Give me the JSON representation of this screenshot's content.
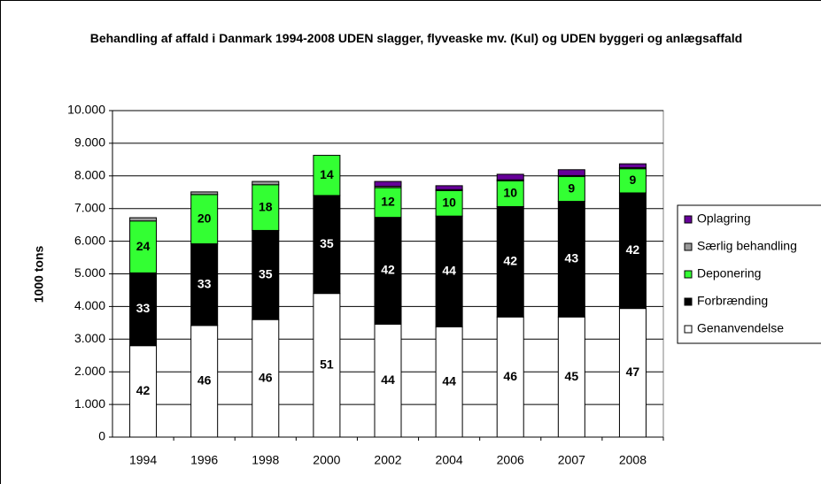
{
  "chart_data": {
    "type": "stacked_bar",
    "title": "Behandling af affald i Danmark 1994-2008 UDEN slagger, flyveaske mv. (Kul) og UDEN byggeri og anlægsaffald",
    "y_label": "1000 tons",
    "categories": [
      "1994",
      "1996",
      "1998",
      "2000",
      "2002",
      "2004",
      "2006",
      "2007",
      "2008"
    ],
    "ylim": [
      0,
      10000
    ],
    "yticks": [
      0,
      {
        "value": 1000,
        "label": "1.000"
      },
      {
        "value": 2000,
        "label": "2.000"
      },
      {
        "value": 3000,
        "label": "3.000"
      },
      {
        "value": 4000,
        "label": "4.000"
      },
      {
        "value": 5000,
        "label": "5.000"
      },
      {
        "value": 6000,
        "label": "6.000"
      },
      {
        "value": 7000,
        "label": "7.000"
      },
      {
        "value": 8000,
        "label": "8.000"
      },
      {
        "value": 9000,
        "label": "9.000"
      },
      {
        "value": 10000,
        "label": "10.000"
      }
    ],
    "grid": true,
    "legend": "right",
    "series": [
      {
        "name": "Genanvendelse",
        "color": "#ffffff",
        "label_color": "#000000",
        "values": [
          2800,
          3420,
          3600,
          4400,
          3460,
          3380,
          3680,
          3680,
          3940
        ],
        "shares": [
          42,
          46,
          46,
          51,
          44,
          44,
          46,
          45,
          47
        ]
      },
      {
        "name": "Forbrænding",
        "color": "#000000",
        "label_color": "#ffffff",
        "values": [
          2230,
          2500,
          2730,
          3000,
          3270,
          3390,
          3380,
          3540,
          3540
        ],
        "shares": [
          33,
          33,
          35,
          35,
          42,
          44,
          42,
          43,
          42
        ]
      },
      {
        "name": "Deponering",
        "color": "#33ff33",
        "label_color": "#000000",
        "values": [
          1590,
          1510,
          1400,
          1230,
          910,
          780,
          790,
          760,
          740
        ],
        "shares": [
          24,
          20,
          18,
          14,
          12,
          10,
          10,
          9,
          9
        ]
      },
      {
        "name": "Særlig behandling",
        "color": "#999999",
        "values": [
          100,
          80,
          100,
          0,
          40,
          30,
          30,
          30,
          30
        ]
      },
      {
        "name": "Oplagring",
        "color": "#660099",
        "values": [
          0,
          0,
          0,
          0,
          150,
          120,
          170,
          180,
          120
        ]
      }
    ]
  }
}
